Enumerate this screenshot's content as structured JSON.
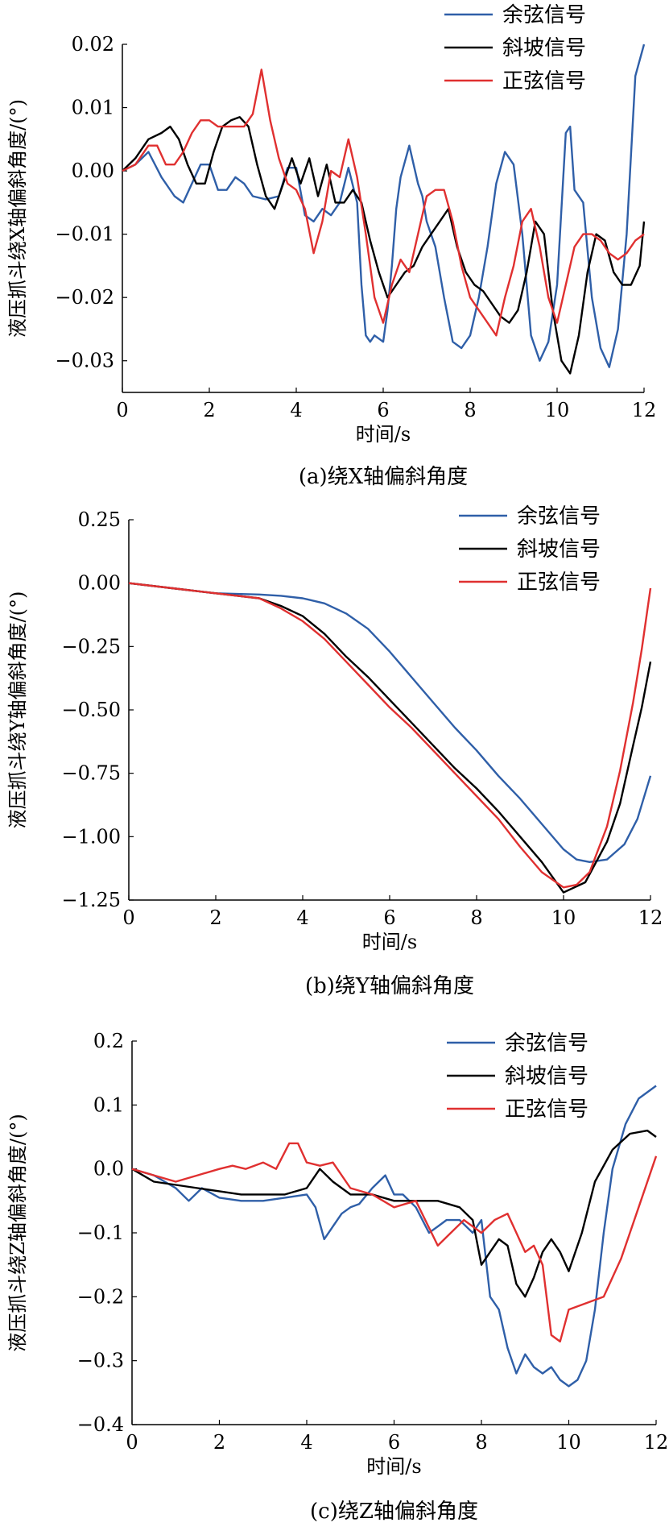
{
  "colors": {
    "series_0": "#2f5fa8",
    "series_1": "#000000",
    "series_2": "#e03030"
  },
  "chart_data": [
    {
      "type": "line",
      "caption": "(a)绕X轴偏斜角度",
      "xlabel": "时间/s",
      "ylabel": "液压抓斗绕X轴偏斜角度/(°)",
      "xlim": [
        0,
        12
      ],
      "ylim": [
        -0.035,
        0.02
      ],
      "xticks": [
        0,
        2,
        4,
        6,
        8,
        10,
        12
      ],
      "yticks": [
        0.02,
        0.01,
        0.0,
        -0.01,
        -0.02,
        -0.03
      ],
      "ytick_labels": [
        "0.02",
        "0.01",
        "0.00",
        "−0.01",
        "−0.02",
        "−0.03"
      ],
      "legend_position": "top-right",
      "series": [
        {
          "name": "余弦信号",
          "color": "#2f5fa8",
          "x": [
            0,
            0.3,
            0.6,
            0.9,
            1.2,
            1.4,
            1.6,
            1.8,
            2.0,
            2.2,
            2.4,
            2.6,
            2.8,
            3.0,
            3.3,
            3.6,
            3.8,
            4.0,
            4.2,
            4.4,
            4.6,
            4.8,
            5.0,
            5.2,
            5.4,
            5.5,
            5.6,
            5.7,
            5.8,
            6.0,
            6.1,
            6.2,
            6.3,
            6.4,
            6.6,
            6.8,
            6.9,
            7.0,
            7.2,
            7.4,
            7.6,
            7.8,
            8.0,
            8.2,
            8.4,
            8.6,
            8.8,
            9.0,
            9.2,
            9.4,
            9.6,
            9.8,
            10.0,
            10.2,
            10.3,
            10.4,
            10.6,
            10.8,
            11.0,
            11.2,
            11.4,
            11.6,
            11.8,
            12.0
          ],
          "y": [
            0,
            0.001,
            0.003,
            -0.001,
            -0.004,
            -0.005,
            -0.002,
            0.001,
            0.001,
            -0.003,
            -0.003,
            -0.001,
            -0.002,
            -0.004,
            -0.0045,
            -0.004,
            0.0005,
            0.0005,
            -0.007,
            -0.008,
            -0.006,
            -0.007,
            -0.005,
            0.0005,
            -0.005,
            -0.018,
            -0.026,
            -0.027,
            -0.026,
            -0.027,
            -0.022,
            -0.015,
            -0.006,
            -0.001,
            0.004,
            -0.002,
            -0.004,
            -0.008,
            -0.012,
            -0.02,
            -0.027,
            -0.028,
            -0.026,
            -0.02,
            -0.012,
            -0.002,
            0.003,
            0.001,
            -0.01,
            -0.026,
            -0.03,
            -0.027,
            -0.018,
            0.006,
            0.007,
            -0.003,
            -0.005,
            -0.02,
            -0.028,
            -0.031,
            -0.025,
            -0.01,
            0.015,
            0.02
          ]
        },
        {
          "name": "斜坡信号",
          "color": "#000000",
          "x": [
            0,
            0.3,
            0.6,
            0.9,
            1.1,
            1.3,
            1.5,
            1.7,
            1.9,
            2.1,
            2.3,
            2.5,
            2.7,
            2.9,
            3.1,
            3.3,
            3.5,
            3.7,
            3.9,
            4.1,
            4.3,
            4.5,
            4.7,
            4.9,
            5.1,
            5.3,
            5.5,
            5.7,
            5.9,
            6.1,
            6.3,
            6.5,
            6.7,
            6.9,
            7.1,
            7.3,
            7.5,
            7.7,
            7.9,
            8.1,
            8.3,
            8.5,
            8.7,
            8.9,
            9.1,
            9.3,
            9.5,
            9.7,
            9.9,
            10.1,
            10.3,
            10.5,
            10.7,
            10.9,
            11.1,
            11.3,
            11.5,
            11.7,
            11.9,
            12.0
          ],
          "y": [
            0,
            0.002,
            0.005,
            0.006,
            0.007,
            0.005,
            0.001,
            -0.002,
            -0.002,
            0.003,
            0.007,
            0.008,
            0.0085,
            0.007,
            0.001,
            -0.004,
            -0.006,
            -0.002,
            0.002,
            -0.002,
            0.002,
            -0.004,
            0.001,
            -0.005,
            -0.005,
            -0.003,
            -0.005,
            -0.011,
            -0.016,
            -0.02,
            -0.018,
            -0.016,
            -0.015,
            -0.012,
            -0.01,
            -0.008,
            -0.006,
            -0.012,
            -0.016,
            -0.018,
            -0.019,
            -0.021,
            -0.023,
            -0.024,
            -0.022,
            -0.016,
            -0.008,
            -0.01,
            -0.022,
            -0.03,
            -0.032,
            -0.026,
            -0.016,
            -0.01,
            -0.011,
            -0.016,
            -0.018,
            -0.018,
            -0.015,
            -0.008
          ]
        },
        {
          "name": "正弦信号",
          "color": "#e03030",
          "x": [
            0,
            0.3,
            0.6,
            0.8,
            1.0,
            1.2,
            1.4,
            1.6,
            1.8,
            2.0,
            2.2,
            2.4,
            2.6,
            2.8,
            3.0,
            3.2,
            3.4,
            3.6,
            3.8,
            4.0,
            4.2,
            4.4,
            4.6,
            4.8,
            5.0,
            5.2,
            5.4,
            5.6,
            5.8,
            6.0,
            6.2,
            6.4,
            6.6,
            6.8,
            7.0,
            7.2,
            7.4,
            7.6,
            7.8,
            8.0,
            8.2,
            8.4,
            8.6,
            8.8,
            9.0,
            9.2,
            9.4,
            9.6,
            9.8,
            10.0,
            10.2,
            10.4,
            10.6,
            10.8,
            11.0,
            11.2,
            11.4,
            11.6,
            11.8,
            12.0
          ],
          "y": [
            0,
            0.001,
            0.004,
            0.004,
            0.001,
            0.001,
            0.003,
            0.006,
            0.008,
            0.008,
            0.007,
            0.007,
            0.007,
            0.007,
            0.009,
            0.016,
            0.008,
            0.002,
            -0.002,
            -0.003,
            -0.006,
            -0.013,
            -0.008,
            0.0,
            -0.001,
            0.005,
            -0.001,
            -0.01,
            -0.02,
            -0.024,
            -0.018,
            -0.014,
            -0.016,
            -0.01,
            -0.004,
            -0.003,
            -0.003,
            -0.008,
            -0.015,
            -0.02,
            -0.022,
            -0.024,
            -0.026,
            -0.02,
            -0.015,
            -0.008,
            -0.006,
            -0.012,
            -0.02,
            -0.024,
            -0.018,
            -0.012,
            -0.01,
            -0.01,
            -0.011,
            -0.013,
            -0.014,
            -0.013,
            -0.011,
            -0.01
          ]
        }
      ]
    },
    {
      "type": "line",
      "caption": "(b)绕Y轴偏斜角度",
      "xlabel": "时间/s",
      "ylabel": "液压抓斗绕Y轴偏斜角度/(°)",
      "xlim": [
        0,
        12
      ],
      "ylim": [
        -1.25,
        0.25
      ],
      "xticks": [
        0,
        2,
        4,
        6,
        8,
        10,
        12
      ],
      "yticks": [
        0.25,
        0.0,
        -0.25,
        -0.5,
        -0.75,
        -1.0,
        -1.25
      ],
      "ytick_labels": [
        "0.25",
        "0.00",
        "−0.25",
        "−0.50",
        "−0.75",
        "−1.00",
        "−1.25"
      ],
      "legend_position": "top-right",
      "series": [
        {
          "name": "余弦信号",
          "color": "#2f5fa8",
          "x": [
            0,
            1,
            2,
            3,
            3.5,
            4,
            4.5,
            5,
            5.5,
            6,
            6.5,
            7,
            7.5,
            8,
            8.5,
            9,
            9.5,
            10,
            10.3,
            10.6,
            11,
            11.4,
            11.7,
            12
          ],
          "y": [
            0,
            -0.02,
            -0.04,
            -0.045,
            -0.05,
            -0.06,
            -0.08,
            -0.12,
            -0.18,
            -0.27,
            -0.37,
            -0.47,
            -0.57,
            -0.66,
            -0.76,
            -0.85,
            -0.95,
            -1.05,
            -1.09,
            -1.1,
            -1.09,
            -1.03,
            -0.93,
            -0.76
          ]
        },
        {
          "name": "斜坡信号",
          "color": "#000000",
          "x": [
            0,
            1,
            2,
            3,
            3.5,
            4,
            4.5,
            5,
            5.5,
            6,
            6.5,
            7,
            7.5,
            8,
            8.5,
            9,
            9.5,
            10,
            10.5,
            11,
            11.3,
            11.6,
            11.8,
            12
          ],
          "y": [
            0,
            -0.02,
            -0.04,
            -0.06,
            -0.09,
            -0.13,
            -0.2,
            -0.29,
            -0.37,
            -0.46,
            -0.55,
            -0.64,
            -0.73,
            -0.81,
            -0.9,
            -1.0,
            -1.1,
            -1.22,
            -1.18,
            -1.02,
            -0.87,
            -0.64,
            -0.49,
            -0.31
          ]
        },
        {
          "name": "正弦信号",
          "color": "#e03030",
          "x": [
            0,
            1,
            2,
            3,
            3.5,
            4,
            4.5,
            5,
            5.5,
            6,
            6.5,
            7,
            7.5,
            8,
            8.5,
            9,
            9.5,
            10,
            10.3,
            10.6,
            11,
            11.3,
            11.6,
            11.8,
            12
          ],
          "y": [
            0,
            -0.02,
            -0.04,
            -0.06,
            -0.1,
            -0.15,
            -0.22,
            -0.31,
            -0.4,
            -0.49,
            -0.57,
            -0.66,
            -0.75,
            -0.84,
            -0.93,
            -1.04,
            -1.14,
            -1.2,
            -1.19,
            -1.14,
            -0.96,
            -0.74,
            -0.47,
            -0.26,
            -0.02
          ]
        }
      ]
    },
    {
      "type": "line",
      "caption": "(c)绕Z轴偏斜角度",
      "xlabel": "时间/s",
      "ylabel": "液压抓斗绕Z轴偏斜角度/(°)",
      "xlim": [
        0,
        12
      ],
      "ylim": [
        -0.4,
        0.2
      ],
      "xticks": [
        0,
        2,
        4,
        6,
        8,
        10,
        12
      ],
      "yticks": [
        0.2,
        0.1,
        0.0,
        -0.1,
        -0.2,
        -0.3,
        -0.4
      ],
      "ytick_labels": [
        "0.2",
        "0.1",
        "0.0",
        "−0.1",
        "−0.2",
        "−0.3",
        "−0.4"
      ],
      "legend_position": "top-right",
      "series": [
        {
          "name": "余弦信号",
          "color": "#2f5fa8",
          "x": [
            0,
            0.5,
            1.0,
            1.3,
            1.6,
            2.0,
            2.5,
            3.0,
            3.5,
            4.0,
            4.2,
            4.4,
            4.6,
            4.8,
            5.0,
            5.2,
            5.5,
            5.8,
            6.0,
            6.2,
            6.5,
            6.8,
            7.0,
            7.2,
            7.5,
            7.8,
            8.0,
            8.2,
            8.4,
            8.6,
            8.8,
            9.0,
            9.2,
            9.4,
            9.6,
            9.8,
            10.0,
            10.2,
            10.4,
            10.6,
            10.8,
            11.0,
            11.3,
            11.6,
            12
          ],
          "y": [
            0,
            -0.01,
            -0.03,
            -0.05,
            -0.03,
            -0.045,
            -0.05,
            -0.05,
            -0.045,
            -0.04,
            -0.06,
            -0.11,
            -0.09,
            -0.07,
            -0.06,
            -0.055,
            -0.03,
            -0.01,
            -0.04,
            -0.04,
            -0.06,
            -0.1,
            -0.09,
            -0.08,
            -0.08,
            -0.1,
            -0.08,
            -0.2,
            -0.22,
            -0.28,
            -0.32,
            -0.29,
            -0.31,
            -0.32,
            -0.31,
            -0.33,
            -0.34,
            -0.33,
            -0.3,
            -0.22,
            -0.1,
            0.0,
            0.07,
            0.11,
            0.13
          ]
        },
        {
          "name": "斜坡信号",
          "color": "#000000",
          "x": [
            0,
            0.5,
            1.0,
            1.5,
            2.0,
            2.5,
            3.0,
            3.5,
            4.0,
            4.3,
            4.6,
            5.0,
            5.5,
            6.0,
            6.5,
            7.0,
            7.5,
            7.8,
            8.0,
            8.2,
            8.4,
            8.6,
            8.8,
            9.0,
            9.2,
            9.4,
            9.6,
            9.8,
            10.0,
            10.3,
            10.6,
            11.0,
            11.4,
            11.8,
            12
          ],
          "y": [
            0,
            -0.02,
            -0.025,
            -0.03,
            -0.035,
            -0.04,
            -0.04,
            -0.04,
            -0.03,
            0.0,
            -0.02,
            -0.04,
            -0.04,
            -0.05,
            -0.05,
            -0.05,
            -0.06,
            -0.08,
            -0.15,
            -0.13,
            -0.11,
            -0.12,
            -0.18,
            -0.2,
            -0.17,
            -0.13,
            -0.11,
            -0.13,
            -0.16,
            -0.1,
            -0.02,
            0.03,
            0.055,
            0.06,
            0.05
          ]
        },
        {
          "name": "正弦信号",
          "color": "#e03030",
          "x": [
            0,
            0.5,
            1.0,
            1.5,
            2.0,
            2.3,
            2.6,
            3.0,
            3.3,
            3.6,
            3.8,
            4.0,
            4.3,
            4.6,
            5.0,
            5.5,
            6.0,
            6.5,
            7.0,
            7.3,
            7.6,
            8.0,
            8.3,
            8.6,
            9.0,
            9.2,
            9.4,
            9.6,
            9.8,
            10.0,
            10.4,
            10.8,
            11.2,
            11.6,
            12
          ],
          "y": [
            0,
            -0.01,
            -0.02,
            -0.01,
            0.0,
            0.005,
            0.0,
            0.01,
            0.0,
            0.04,
            0.04,
            0.01,
            0.005,
            0.01,
            -0.03,
            -0.04,
            -0.06,
            -0.05,
            -0.12,
            -0.1,
            -0.08,
            -0.1,
            -0.08,
            -0.07,
            -0.13,
            -0.12,
            -0.15,
            -0.26,
            -0.27,
            -0.22,
            -0.21,
            -0.2,
            -0.14,
            -0.06,
            0.02
          ]
        }
      ]
    }
  ]
}
